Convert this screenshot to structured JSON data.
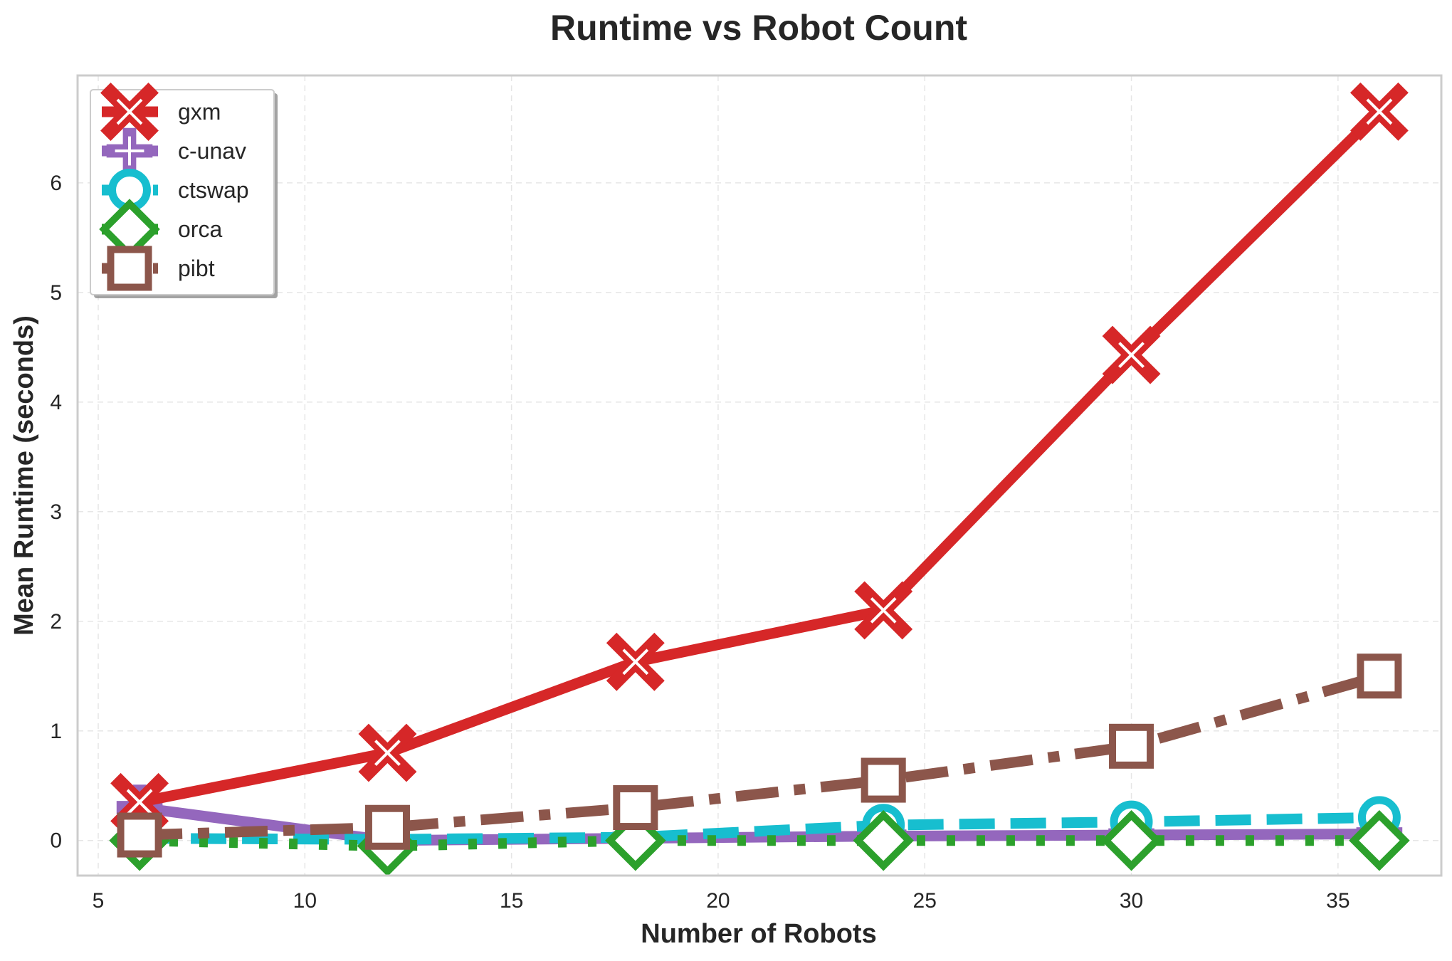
{
  "chart_data": {
    "type": "line",
    "title": "Runtime vs Robot Count",
    "xlabel": "Number of Robots",
    "ylabel": "Mean Runtime (seconds)",
    "xlim": [
      4.5,
      37.5
    ],
    "ylim": [
      -0.32,
      6.98
    ],
    "xticks": [
      5,
      10,
      15,
      20,
      25,
      30,
      35
    ],
    "yticks": [
      0,
      1,
      2,
      3,
      4,
      5,
      6
    ],
    "grid": true,
    "legend_position": "upper-left",
    "x": [
      6,
      12,
      18,
      24,
      30,
      36
    ],
    "series": [
      {
        "name": "gxm",
        "values": [
          0.35,
          0.8,
          1.63,
          2.1,
          4.43,
          6.65
        ],
        "color": "#d62728",
        "marker": "x-cross",
        "linestyle": "solid"
      },
      {
        "name": "c-unav",
        "values": [
          0.3,
          0.0,
          0.02,
          0.04,
          0.05,
          0.06
        ],
        "color": "#9467bd",
        "marker": "plus",
        "linestyle": "solid"
      },
      {
        "name": "ctswap",
        "values": [
          0.02,
          0.01,
          0.03,
          0.14,
          0.17,
          0.21
        ],
        "color": "#17becf",
        "marker": "circle",
        "linestyle": "dashed"
      },
      {
        "name": "orca",
        "values": [
          0.0,
          -0.05,
          0.0,
          0.0,
          0.0,
          0.0
        ],
        "color": "#2ca02c",
        "marker": "diamond",
        "linestyle": "dotted"
      },
      {
        "name": "pibt",
        "values": [
          0.05,
          0.12,
          0.3,
          0.55,
          0.86,
          1.5
        ],
        "color": "#8c564b",
        "marker": "square",
        "linestyle": "dashdot"
      }
    ]
  }
}
